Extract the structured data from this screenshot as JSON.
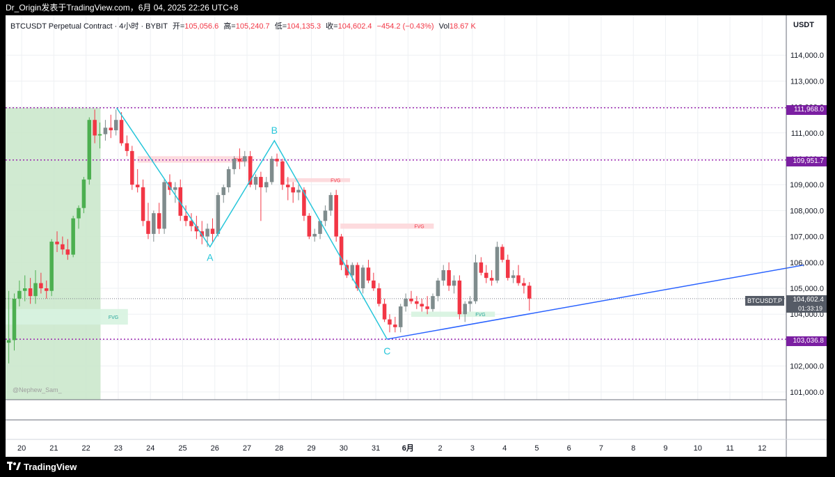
{
  "window": {
    "title": "Dr_Origin发表于TradingView.com，6月 04, 2025 22:26 UTC+8"
  },
  "legend": {
    "symbol": "BTCUSDT Perpetual Contract · 4小时 · BYBIT",
    "open_label": "开=",
    "open": "105,056.6",
    "high_label": "高=",
    "high": "105,240.7",
    "low_label": "低=",
    "low": "104,135.3",
    "close_label": "收=",
    "close": "104,602.4",
    "change": "−454.2 (−0.43%)",
    "vol_label": "Vol",
    "vol": "18.67 K"
  },
  "axis_unit": "USDT",
  "levels": {
    "resistance_1": "111,968.0",
    "resistance_2": "109,951.7",
    "support": "103,036.8",
    "last_price": "104,602.4",
    "last_time": "01:33:19",
    "symbol_tag": "BTCUSDT.P"
  },
  "watermark": "@Nephew_Sam_",
  "fvg_label": "FVG",
  "pattern_labels": [
    "A",
    "B",
    "C"
  ],
  "footer": {
    "brand": "TradingView"
  },
  "colors": {
    "up": "#7f8c8d",
    "down": "#f23645",
    "green_candle": "#4caf50",
    "zone_green": "#c8e6c9",
    "fvg_red": "#fdd7da",
    "fvg_green": "#d7f3e0",
    "pattern_line": "#26c6da",
    "trend_line": "#2962ff",
    "level_line": "#9c27b0"
  },
  "chart_data": {
    "type": "candlestick",
    "title": "BTCUSDT Perpetual Contract · 4小时 · BYBIT",
    "ylim": [
      100700,
      115000
    ],
    "yticks": [
      "114,000.0",
      "113,000.0",
      "112,000.0",
      "111,000.0",
      "110,000.0",
      "109,000.0",
      "108,000.0",
      "107,000.0",
      "106,000.0",
      "105,000.0",
      "104,000.0",
      "103,000.0",
      "102,000.0",
      "101,000.0"
    ],
    "ytick_values": [
      114000,
      113000,
      112000,
      111000,
      110000,
      109000,
      108000,
      107000,
      106000,
      105000,
      104000,
      103000,
      102000,
      101000
    ],
    "xticks": [
      "20",
      "21",
      "22",
      "23",
      "24",
      "25",
      "26",
      "27",
      "28",
      "29",
      "30",
      "31",
      "6月",
      "2",
      "3",
      "4",
      "5",
      "6",
      "7",
      "8",
      "9",
      "10",
      "11",
      "12"
    ],
    "x_domain_days": [
      19.5,
      43.75
    ],
    "horizontal_levels": [
      111968.0,
      109951.7,
      103036.8
    ],
    "last_price": 104602.4,
    "pattern_points": [
      {
        "label": "",
        "x": 22.95,
        "y": 111968
      },
      {
        "label": "A",
        "x": 25.85,
        "y": 106600
      },
      {
        "label": "B",
        "x": 27.85,
        "y": 110700
      },
      {
        "label": "C",
        "x": 31.35,
        "y": 103036.8
      }
    ],
    "trendline": [
      {
        "x": 31.35,
        "y": 103036.8
      },
      {
        "x": 44.3,
        "y": 105900
      }
    ],
    "green_zone": {
      "x0": 19.5,
      "x1": 22.45,
      "y0": 100700,
      "y1": 111968
    },
    "fvg_zones": [
      {
        "x0": 23.6,
        "x1": 27.2,
        "y0": 109850,
        "y1": 110100,
        "color": "red"
      },
      {
        "x0": 28.2,
        "x1": 30.2,
        "y0": 109100,
        "y1": 109250,
        "color": "red"
      },
      {
        "x0": 29.9,
        "x1": 32.8,
        "y0": 107300,
        "y1": 107500,
        "color": "red"
      },
      {
        "x0": 19.5,
        "x1": 23.3,
        "y0": 103600,
        "y1": 104200,
        "color": "green"
      },
      {
        "x0": 32.1,
        "x1": 34.7,
        "y0": 103900,
        "y1": 104100,
        "color": "green"
      }
    ],
    "candles": [
      {
        "t": 19.6,
        "o": 102900,
        "h": 104900,
        "l": 102100,
        "c": 103000
      },
      {
        "t": 19.77,
        "o": 103000,
        "h": 104800,
        "l": 102600,
        "c": 104600
      },
      {
        "t": 19.93,
        "o": 104600,
        "h": 105300,
        "l": 104300,
        "c": 104900
      },
      {
        "t": 20.1,
        "o": 104900,
        "h": 105500,
        "l": 104500,
        "c": 105000
      },
      {
        "t": 20.27,
        "o": 105000,
        "h": 105400,
        "l": 104400,
        "c": 104700
      },
      {
        "t": 20.43,
        "o": 104700,
        "h": 105700,
        "l": 104400,
        "c": 105200
      },
      {
        "t": 20.6,
        "o": 105200,
        "h": 105600,
        "l": 104800,
        "c": 105000
      },
      {
        "t": 20.77,
        "o": 105000,
        "h": 105300,
        "l": 104600,
        "c": 104900
      },
      {
        "t": 20.93,
        "o": 104900,
        "h": 106900,
        "l": 104700,
        "c": 106800
      },
      {
        "t": 21.1,
        "o": 106800,
        "h": 107200,
        "l": 106400,
        "c": 106700
      },
      {
        "t": 21.27,
        "o": 106700,
        "h": 107000,
        "l": 106300,
        "c": 106500
      },
      {
        "t": 21.43,
        "o": 106500,
        "h": 106900,
        "l": 106100,
        "c": 106300
      },
      {
        "t": 21.6,
        "o": 106300,
        "h": 107800,
        "l": 106200,
        "c": 107700
      },
      {
        "t": 21.77,
        "o": 107700,
        "h": 108200,
        "l": 107300,
        "c": 108100
      },
      {
        "t": 21.93,
        "o": 108100,
        "h": 109300,
        "l": 107900,
        "c": 109200
      },
      {
        "t": 22.1,
        "o": 109200,
        "h": 111600,
        "l": 109000,
        "c": 111500
      },
      {
        "t": 22.27,
        "o": 111500,
        "h": 111900,
        "l": 110600,
        "c": 110900
      },
      {
        "t": 22.43,
        "o": 110900,
        "h": 111400,
        "l": 110400,
        "c": 110950
      },
      {
        "t": 22.6,
        "o": 110950,
        "h": 111500,
        "l": 110700,
        "c": 111200
      },
      {
        "t": 22.77,
        "o": 111200,
        "h": 111700,
        "l": 110800,
        "c": 111100
      },
      {
        "t": 22.93,
        "o": 111100,
        "h": 111900,
        "l": 110900,
        "c": 111500
      },
      {
        "t": 23.1,
        "o": 111500,
        "h": 111800,
        "l": 110500,
        "c": 110600
      },
      {
        "t": 23.27,
        "o": 110600,
        "h": 110900,
        "l": 110100,
        "c": 110300
      },
      {
        "t": 23.43,
        "o": 110300,
        "h": 110500,
        "l": 108800,
        "c": 109000
      },
      {
        "t": 23.6,
        "o": 109000,
        "h": 109600,
        "l": 108700,
        "c": 108900
      },
      {
        "t": 23.77,
        "o": 108900,
        "h": 109200,
        "l": 107400,
        "c": 107600
      },
      {
        "t": 23.93,
        "o": 107600,
        "h": 108300,
        "l": 106900,
        "c": 107100
      },
      {
        "t": 24.1,
        "o": 107100,
        "h": 108000,
        "l": 106800,
        "c": 107900
      },
      {
        "t": 24.27,
        "o": 107900,
        "h": 108300,
        "l": 107100,
        "c": 107300
      },
      {
        "t": 24.43,
        "o": 107300,
        "h": 109200,
        "l": 107100,
        "c": 109100
      },
      {
        "t": 24.6,
        "o": 109100,
        "h": 109400,
        "l": 108600,
        "c": 108800
      },
      {
        "t": 24.77,
        "o": 108800,
        "h": 109100,
        "l": 108300,
        "c": 108900
      },
      {
        "t": 24.93,
        "o": 108900,
        "h": 109200,
        "l": 107600,
        "c": 107800
      },
      {
        "t": 25.1,
        "o": 107800,
        "h": 108200,
        "l": 107400,
        "c": 107600
      },
      {
        "t": 25.27,
        "o": 107600,
        "h": 107900,
        "l": 107200,
        "c": 107400
      },
      {
        "t": 25.43,
        "o": 107400,
        "h": 107800,
        "l": 106900,
        "c": 107200
      },
      {
        "t": 25.6,
        "o": 107200,
        "h": 107600,
        "l": 106700,
        "c": 107000
      },
      {
        "t": 25.77,
        "o": 107000,
        "h": 107500,
        "l": 106600,
        "c": 107300
      },
      {
        "t": 25.93,
        "o": 107300,
        "h": 107700,
        "l": 106800,
        "c": 107100
      },
      {
        "t": 26.1,
        "o": 107100,
        "h": 108700,
        "l": 107000,
        "c": 108600
      },
      {
        "t": 26.27,
        "o": 108600,
        "h": 109000,
        "l": 108300,
        "c": 108900
      },
      {
        "t": 26.43,
        "o": 108900,
        "h": 109700,
        "l": 108700,
        "c": 109600
      },
      {
        "t": 26.6,
        "o": 109600,
        "h": 110100,
        "l": 109400,
        "c": 110000
      },
      {
        "t": 26.77,
        "o": 110000,
        "h": 110400,
        "l": 109600,
        "c": 109900
      },
      {
        "t": 26.93,
        "o": 109900,
        "h": 110300,
        "l": 109700,
        "c": 110100
      },
      {
        "t": 27.1,
        "o": 110100,
        "h": 110300,
        "l": 108900,
        "c": 109000
      },
      {
        "t": 27.27,
        "o": 109000,
        "h": 109400,
        "l": 108800,
        "c": 109300
      },
      {
        "t": 27.43,
        "o": 109300,
        "h": 109500,
        "l": 107600,
        "c": 108900
      },
      {
        "t": 27.6,
        "o": 108900,
        "h": 109300,
        "l": 108700,
        "c": 109100
      },
      {
        "t": 27.77,
        "o": 109100,
        "h": 110100,
        "l": 109000,
        "c": 110000
      },
      {
        "t": 27.93,
        "o": 110000,
        "h": 110200,
        "l": 109700,
        "c": 109900
      },
      {
        "t": 28.1,
        "o": 109900,
        "h": 110000,
        "l": 108800,
        "c": 109000
      },
      {
        "t": 28.27,
        "o": 109000,
        "h": 109300,
        "l": 108400,
        "c": 108900
      },
      {
        "t": 28.43,
        "o": 108900,
        "h": 109100,
        "l": 108300,
        "c": 108700
      },
      {
        "t": 28.6,
        "o": 108700,
        "h": 109000,
        "l": 108400,
        "c": 108800
      },
      {
        "t": 28.77,
        "o": 108800,
        "h": 108900,
        "l": 107600,
        "c": 107800
      },
      {
        "t": 28.93,
        "o": 107800,
        "h": 107900,
        "l": 106900,
        "c": 107000
      },
      {
        "t": 29.1,
        "o": 107000,
        "h": 107300,
        "l": 106800,
        "c": 107100
      },
      {
        "t": 29.27,
        "o": 107100,
        "h": 107600,
        "l": 106900,
        "c": 107600
      },
      {
        "t": 29.43,
        "o": 107600,
        "h": 108200,
        "l": 107400,
        "c": 108000
      },
      {
        "t": 29.6,
        "o": 108000,
        "h": 108700,
        "l": 107800,
        "c": 108600
      },
      {
        "t": 29.77,
        "o": 108600,
        "h": 108800,
        "l": 106800,
        "c": 107000
      },
      {
        "t": 29.93,
        "o": 107000,
        "h": 107100,
        "l": 105700,
        "c": 105900
      },
      {
        "t": 30.1,
        "o": 105900,
        "h": 106100,
        "l": 105400,
        "c": 105500
      },
      {
        "t": 30.27,
        "o": 105500,
        "h": 106000,
        "l": 105300,
        "c": 105900
      },
      {
        "t": 30.43,
        "o": 105900,
        "h": 106000,
        "l": 104900,
        "c": 105000
      },
      {
        "t": 30.6,
        "o": 105000,
        "h": 105900,
        "l": 104800,
        "c": 105800
      },
      {
        "t": 30.77,
        "o": 105800,
        "h": 106100,
        "l": 105200,
        "c": 105300
      },
      {
        "t": 30.93,
        "o": 105300,
        "h": 105600,
        "l": 104900,
        "c": 105000
      },
      {
        "t": 31.1,
        "o": 105000,
        "h": 105200,
        "l": 104300,
        "c": 104400
      },
      {
        "t": 31.27,
        "o": 104400,
        "h": 104600,
        "l": 103700,
        "c": 103800
      },
      {
        "t": 31.43,
        "o": 103800,
        "h": 104000,
        "l": 103300,
        "c": 103600
      },
      {
        "t": 31.6,
        "o": 103600,
        "h": 103900,
        "l": 103300,
        "c": 103500
      },
      {
        "t": 31.77,
        "o": 103500,
        "h": 104400,
        "l": 103300,
        "c": 104300
      },
      {
        "t": 31.93,
        "o": 104300,
        "h": 104800,
        "l": 104100,
        "c": 104600
      },
      {
        "t": 32.1,
        "o": 104600,
        "h": 104900,
        "l": 104400,
        "c": 104500
      },
      {
        "t": 32.27,
        "o": 104500,
        "h": 104700,
        "l": 104200,
        "c": 104400
      },
      {
        "t": 32.43,
        "o": 104400,
        "h": 104600,
        "l": 104100,
        "c": 104300
      },
      {
        "t": 32.6,
        "o": 104300,
        "h": 104700,
        "l": 104000,
        "c": 104200
      },
      {
        "t": 32.77,
        "o": 104200,
        "h": 104800,
        "l": 104100,
        "c": 104700
      },
      {
        "t": 32.93,
        "o": 104700,
        "h": 105400,
        "l": 104500,
        "c": 105300
      },
      {
        "t": 33.1,
        "o": 105300,
        "h": 105900,
        "l": 105100,
        "c": 105700
      },
      {
        "t": 33.27,
        "o": 105700,
        "h": 106000,
        "l": 104900,
        "c": 105100
      },
      {
        "t": 33.43,
        "o": 105100,
        "h": 105500,
        "l": 104800,
        "c": 105300
      },
      {
        "t": 33.6,
        "o": 105300,
        "h": 105500,
        "l": 103800,
        "c": 104000
      },
      {
        "t": 33.77,
        "o": 104000,
        "h": 104500,
        "l": 103700,
        "c": 104400
      },
      {
        "t": 33.93,
        "o": 104400,
        "h": 104700,
        "l": 104100,
        "c": 104500
      },
      {
        "t": 34.1,
        "o": 104500,
        "h": 106300,
        "l": 104400,
        "c": 106000
      },
      {
        "t": 34.27,
        "o": 106000,
        "h": 106200,
        "l": 105500,
        "c": 105600
      },
      {
        "t": 34.43,
        "o": 105600,
        "h": 105900,
        "l": 105200,
        "c": 105400
      },
      {
        "t": 34.6,
        "o": 105400,
        "h": 105700,
        "l": 105100,
        "c": 105300
      },
      {
        "t": 34.77,
        "o": 105300,
        "h": 106800,
        "l": 105200,
        "c": 106600
      },
      {
        "t": 34.93,
        "o": 106600,
        "h": 106700,
        "l": 106000,
        "c": 106100
      },
      {
        "t": 35.1,
        "o": 106100,
        "h": 106300,
        "l": 105300,
        "c": 105400
      },
      {
        "t": 35.27,
        "o": 105400,
        "h": 105700,
        "l": 105200,
        "c": 105500
      },
      {
        "t": 35.43,
        "o": 105500,
        "h": 105900,
        "l": 105100,
        "c": 105200
      },
      {
        "t": 35.6,
        "o": 105200,
        "h": 105400,
        "l": 104800,
        "c": 105100
      },
      {
        "t": 35.77,
        "o": 105100,
        "h": 105240,
        "l": 104135,
        "c": 104602
      }
    ]
  }
}
